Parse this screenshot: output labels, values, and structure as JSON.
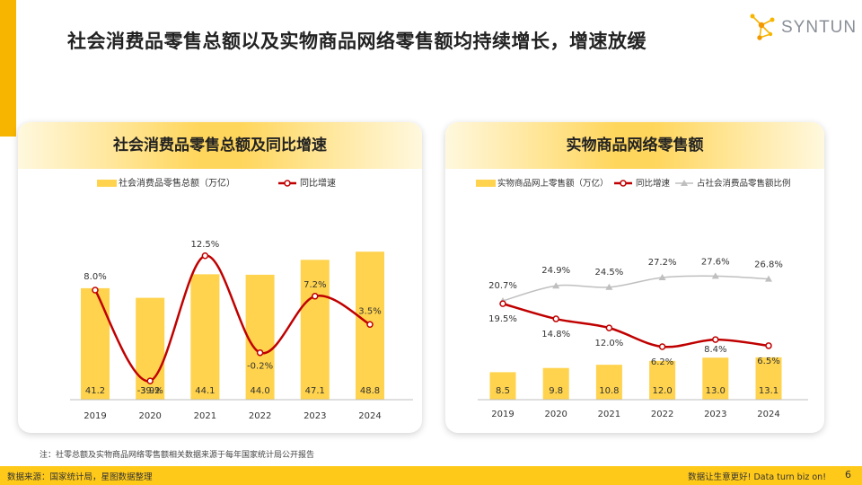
{
  "title": "社会消费品零售总额以及实物商品网络零售额均持续增长，增速放缓",
  "logo_text": "SYNTUN",
  "left_card": {
    "title": "社会消费品零售总额及同比增速"
  },
  "right_card": {
    "title": "实物商品网络零售额"
  },
  "note": "注：社零总额及实物商品网络零售额相关数据来源于每年国家统计局公开报告",
  "footer": {
    "source": "数据来源：国家统计局，星图数据整理",
    "slogan": "数据让生意更好!  Data  turn  biz  on!",
    "page": "6"
  },
  "colors": {
    "accent": "#F7B500",
    "bar": "#FFD34D",
    "line": "#C00000",
    "gray_line": "#BFBFBF",
    "footer": "#FFC91A"
  },
  "chart_data": [
    {
      "type": "bar",
      "title": "社会消费品零售总额及同比增速",
      "categories": [
        "2019",
        "2020",
        "2021",
        "2022",
        "2023",
        "2024"
      ],
      "series": [
        {
          "name": "社会消费品零售总额（万亿）",
          "type": "bar",
          "values": [
            41.2,
            39.2,
            44.1,
            44.0,
            47.1,
            48.8
          ],
          "labels": [
            "41.2",
            "39.2",
            "44.1",
            "44.0",
            "47.1",
            "48.8"
          ]
        },
        {
          "name": "同比增速",
          "type": "line",
          "values": [
            8.0,
            -3.9,
            12.5,
            -0.2,
            7.2,
            3.5
          ],
          "labels": [
            "8.0%",
            "-3.9%",
            "12.5%",
            "-0.2%",
            "7.2%",
            "3.5%"
          ]
        }
      ],
      "legend": "top"
    },
    {
      "type": "bar",
      "title": "实物商品网络零售额",
      "categories": [
        "2019",
        "2020",
        "2021",
        "2022",
        "2023",
        "2024"
      ],
      "series": [
        {
          "name": "实物商品网上零售额（万亿）",
          "type": "bar",
          "values": [
            8.5,
            9.8,
            10.8,
            12.0,
            13.0,
            13.1
          ],
          "labels": [
            "8.5",
            "9.8",
            "10.8",
            "12.0",
            "13.0",
            "13.1"
          ]
        },
        {
          "name": "同比增速",
          "type": "line",
          "values": [
            19.5,
            14.8,
            12.0,
            6.2,
            8.4,
            6.5
          ],
          "labels": [
            "19.5%",
            "14.8%",
            "12.0%",
            "6.2%",
            "8.4%",
            "6.5%"
          ]
        },
        {
          "name": "占社会消费品零售额比例",
          "type": "line",
          "values": [
            20.7,
            24.9,
            24.5,
            27.2,
            27.6,
            26.8
          ],
          "labels": [
            "20.7%",
            "24.9%",
            "24.5%",
            "27.2%",
            "27.6%",
            "26.8%"
          ]
        }
      ],
      "legend": "top"
    }
  ]
}
